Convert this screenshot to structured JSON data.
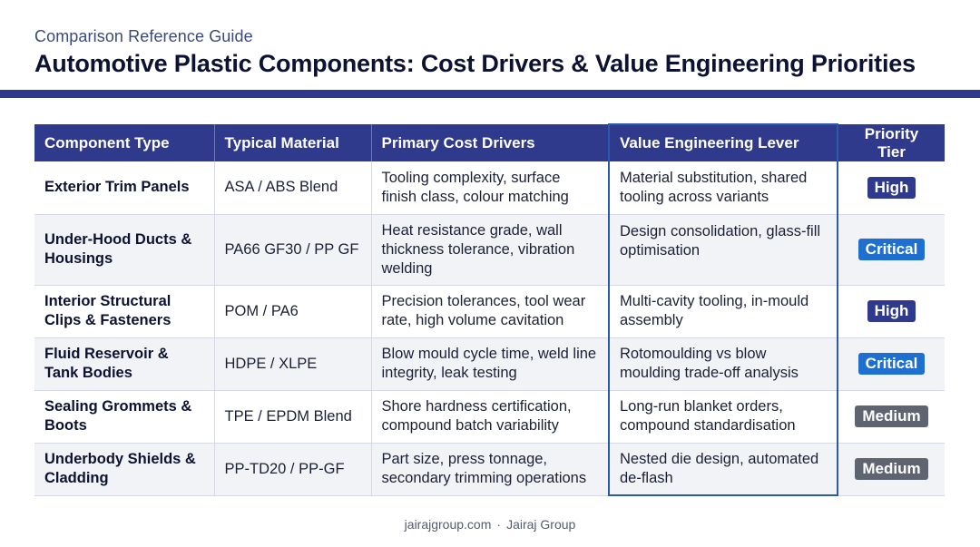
{
  "header": {
    "eyebrow": "Comparison Reference Guide",
    "title": "Automotive Plastic Components: Cost Drivers & Value Engineering Priorities"
  },
  "colors": {
    "accent": "#2f3a8c",
    "highlight_border": "#2b5aa8",
    "badge_high": "#2f3a8c",
    "badge_critical": "#1f6fd1",
    "badge_medium": "#5f6570"
  },
  "table": {
    "headers": [
      "Component Type",
      "Typical Material",
      "Primary Cost Drivers",
      "Value Engineering Lever",
      "Priority Tier"
    ],
    "rows": [
      {
        "component": "Exterior Trim Panels",
        "material": "ASA / ABS Blend",
        "drivers": "Tooling complexity, surface finish class, colour matching",
        "lever": "Material substitution, shared tooling across variants",
        "priority": "High"
      },
      {
        "component": "Under-Hood Ducts & Housings",
        "material": "PA66 GF30 / PP GF",
        "drivers": "Heat resistance grade, wall thickness tolerance, vibration welding",
        "lever": "Design consolidation, glass-fill optimisation",
        "priority": "Critical"
      },
      {
        "component": "Interior Structural Clips & Fasteners",
        "material": "POM / PA6",
        "drivers": "Precision tolerances, tool wear rate, high volume cavitation",
        "lever": "Multi-cavity tooling, in-mould assembly",
        "priority": "High"
      },
      {
        "component": "Fluid Reservoir & Tank Bodies",
        "material": "HDPE / XLPE",
        "drivers": "Blow mould cycle time, weld line integrity, leak testing",
        "lever": "Rotomoulding vs blow moulding trade-off analysis",
        "priority": "Critical"
      },
      {
        "component": "Sealing Grommets & Boots",
        "material": "TPE / EPDM Blend",
        "drivers": "Shore hardness certification, compound batch variability",
        "lever": "Long-run blanket orders, compound standardisation",
        "priority": "Medium"
      },
      {
        "component": "Underbody Shields & Cladding",
        "material": "PP-TD20 / PP-GF",
        "drivers": "Part size, press tonnage, secondary trimming operations",
        "lever": "Nested die design, automated de-flash",
        "priority": "Medium"
      }
    ]
  },
  "footer": {
    "site": "jairajgroup.com",
    "separator": "·",
    "company": "Jairaj Group"
  }
}
